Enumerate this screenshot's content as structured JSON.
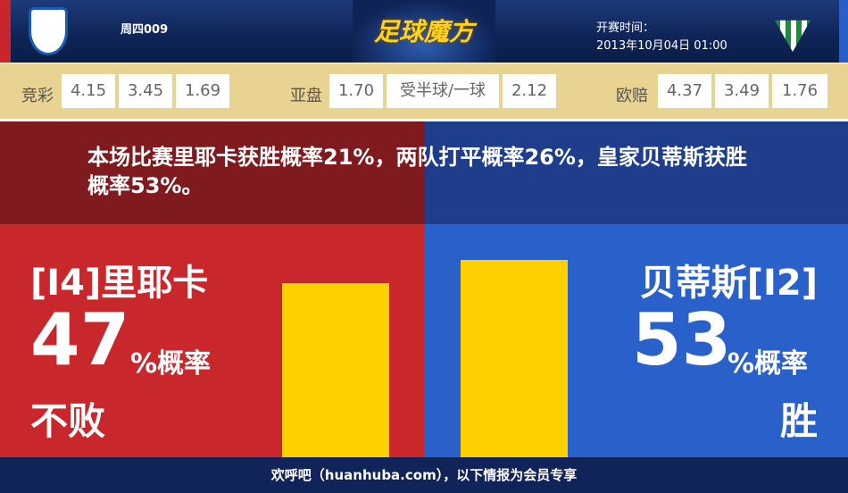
{
  "header": {
    "match_no": "周四009",
    "brand": "足球魔方",
    "kickoff_label": "开赛时间：",
    "kickoff_time": "2013年10月04日 01:00",
    "home_logo": "HNK Rijeka",
    "away_logo": "Real Betis"
  },
  "odds": {
    "jingcai": {
      "label": "竞彩",
      "values": [
        "4.15",
        "3.45",
        "1.69"
      ]
    },
    "asian": {
      "label": "亚盘",
      "values": [
        "1.70",
        "受半球/一球",
        "2.12"
      ]
    },
    "euro": {
      "label": "欧赔",
      "values": [
        "4.37",
        "3.49",
        "1.76"
      ]
    }
  },
  "message": "本场比赛里耶卡获胜概率21%，两队打平概率26%，皇家贝蒂斯获胜概率53%。",
  "home": {
    "name": "[I4]里耶卡",
    "percent": "47",
    "suffix": "%概率",
    "outcome": "不败",
    "bar_percent": 47
  },
  "away": {
    "name": "贝蒂斯[I2]",
    "percent": "53",
    "suffix": "%概率",
    "outcome": "胜",
    "bar_percent": 53
  },
  "colors": {
    "home": "#c8282c",
    "away": "#2a60c9",
    "bar": "#ffd000"
  },
  "footer": "欢呼吧（huanhuba.com），以下情报为会员专享"
}
